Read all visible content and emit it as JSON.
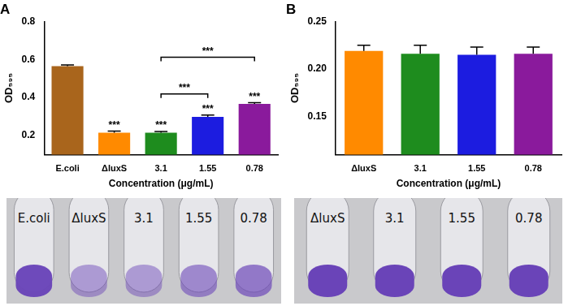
{
  "chart_data": [
    {
      "type": "bar",
      "title": "A",
      "categories": [
        "E.coli",
        "ΔluxS",
        "3.1",
        "1.55",
        "0.78"
      ],
      "values": [
        0.565,
        0.215,
        0.215,
        0.298,
        0.366
      ],
      "errors": [
        0.006,
        0.008,
        0.006,
        0.01,
        0.007
      ],
      "colors": [
        "#a9651c",
        "#ff8a00",
        "#1e8c1e",
        "#1c1ce0",
        "#8a1a9c"
      ],
      "x_label": "Concentration (μg/mL)",
      "y_label": "OD₅₉₅",
      "ylim": [
        0.1,
        0.8
      ],
      "yticks": [
        0.2,
        0.4,
        0.6,
        0.8
      ],
      "grid": false,
      "significance": [
        null,
        "***",
        "***",
        "***",
        "***"
      ],
      "comparisons": [
        {
          "from": "3.1",
          "to": "1.55",
          "label": "***"
        },
        {
          "from": "3.1",
          "to": "0.78",
          "label": "***"
        }
      ],
      "photo_labels": [
        "E.coli",
        "ΔluxS",
        "3.1",
        "1.55",
        "0.78"
      ]
    },
    {
      "type": "bar",
      "title": "B",
      "categories": [
        "ΔluxS",
        "3.1",
        "1.55",
        "0.78"
      ],
      "values": [
        0.219,
        0.216,
        0.215,
        0.216
      ],
      "errors": [
        0.006,
        0.009,
        0.008,
        0.007
      ],
      "colors": [
        "#ff8a00",
        "#1e8c1e",
        "#1c1ce0",
        "#8a1a9c"
      ],
      "x_label": "Concentration (μg/mL)",
      "y_label": "OD₅₉₅",
      "ylim": [
        0.11,
        0.25
      ],
      "yticks": [
        0.15,
        {
          "value": 0.2,
          "label": "0.20"
        },
        0.25
      ],
      "grid": false,
      "photo_labels": [
        "ΔluxS",
        "3.1",
        "1.55",
        "0.78"
      ]
    }
  ]
}
